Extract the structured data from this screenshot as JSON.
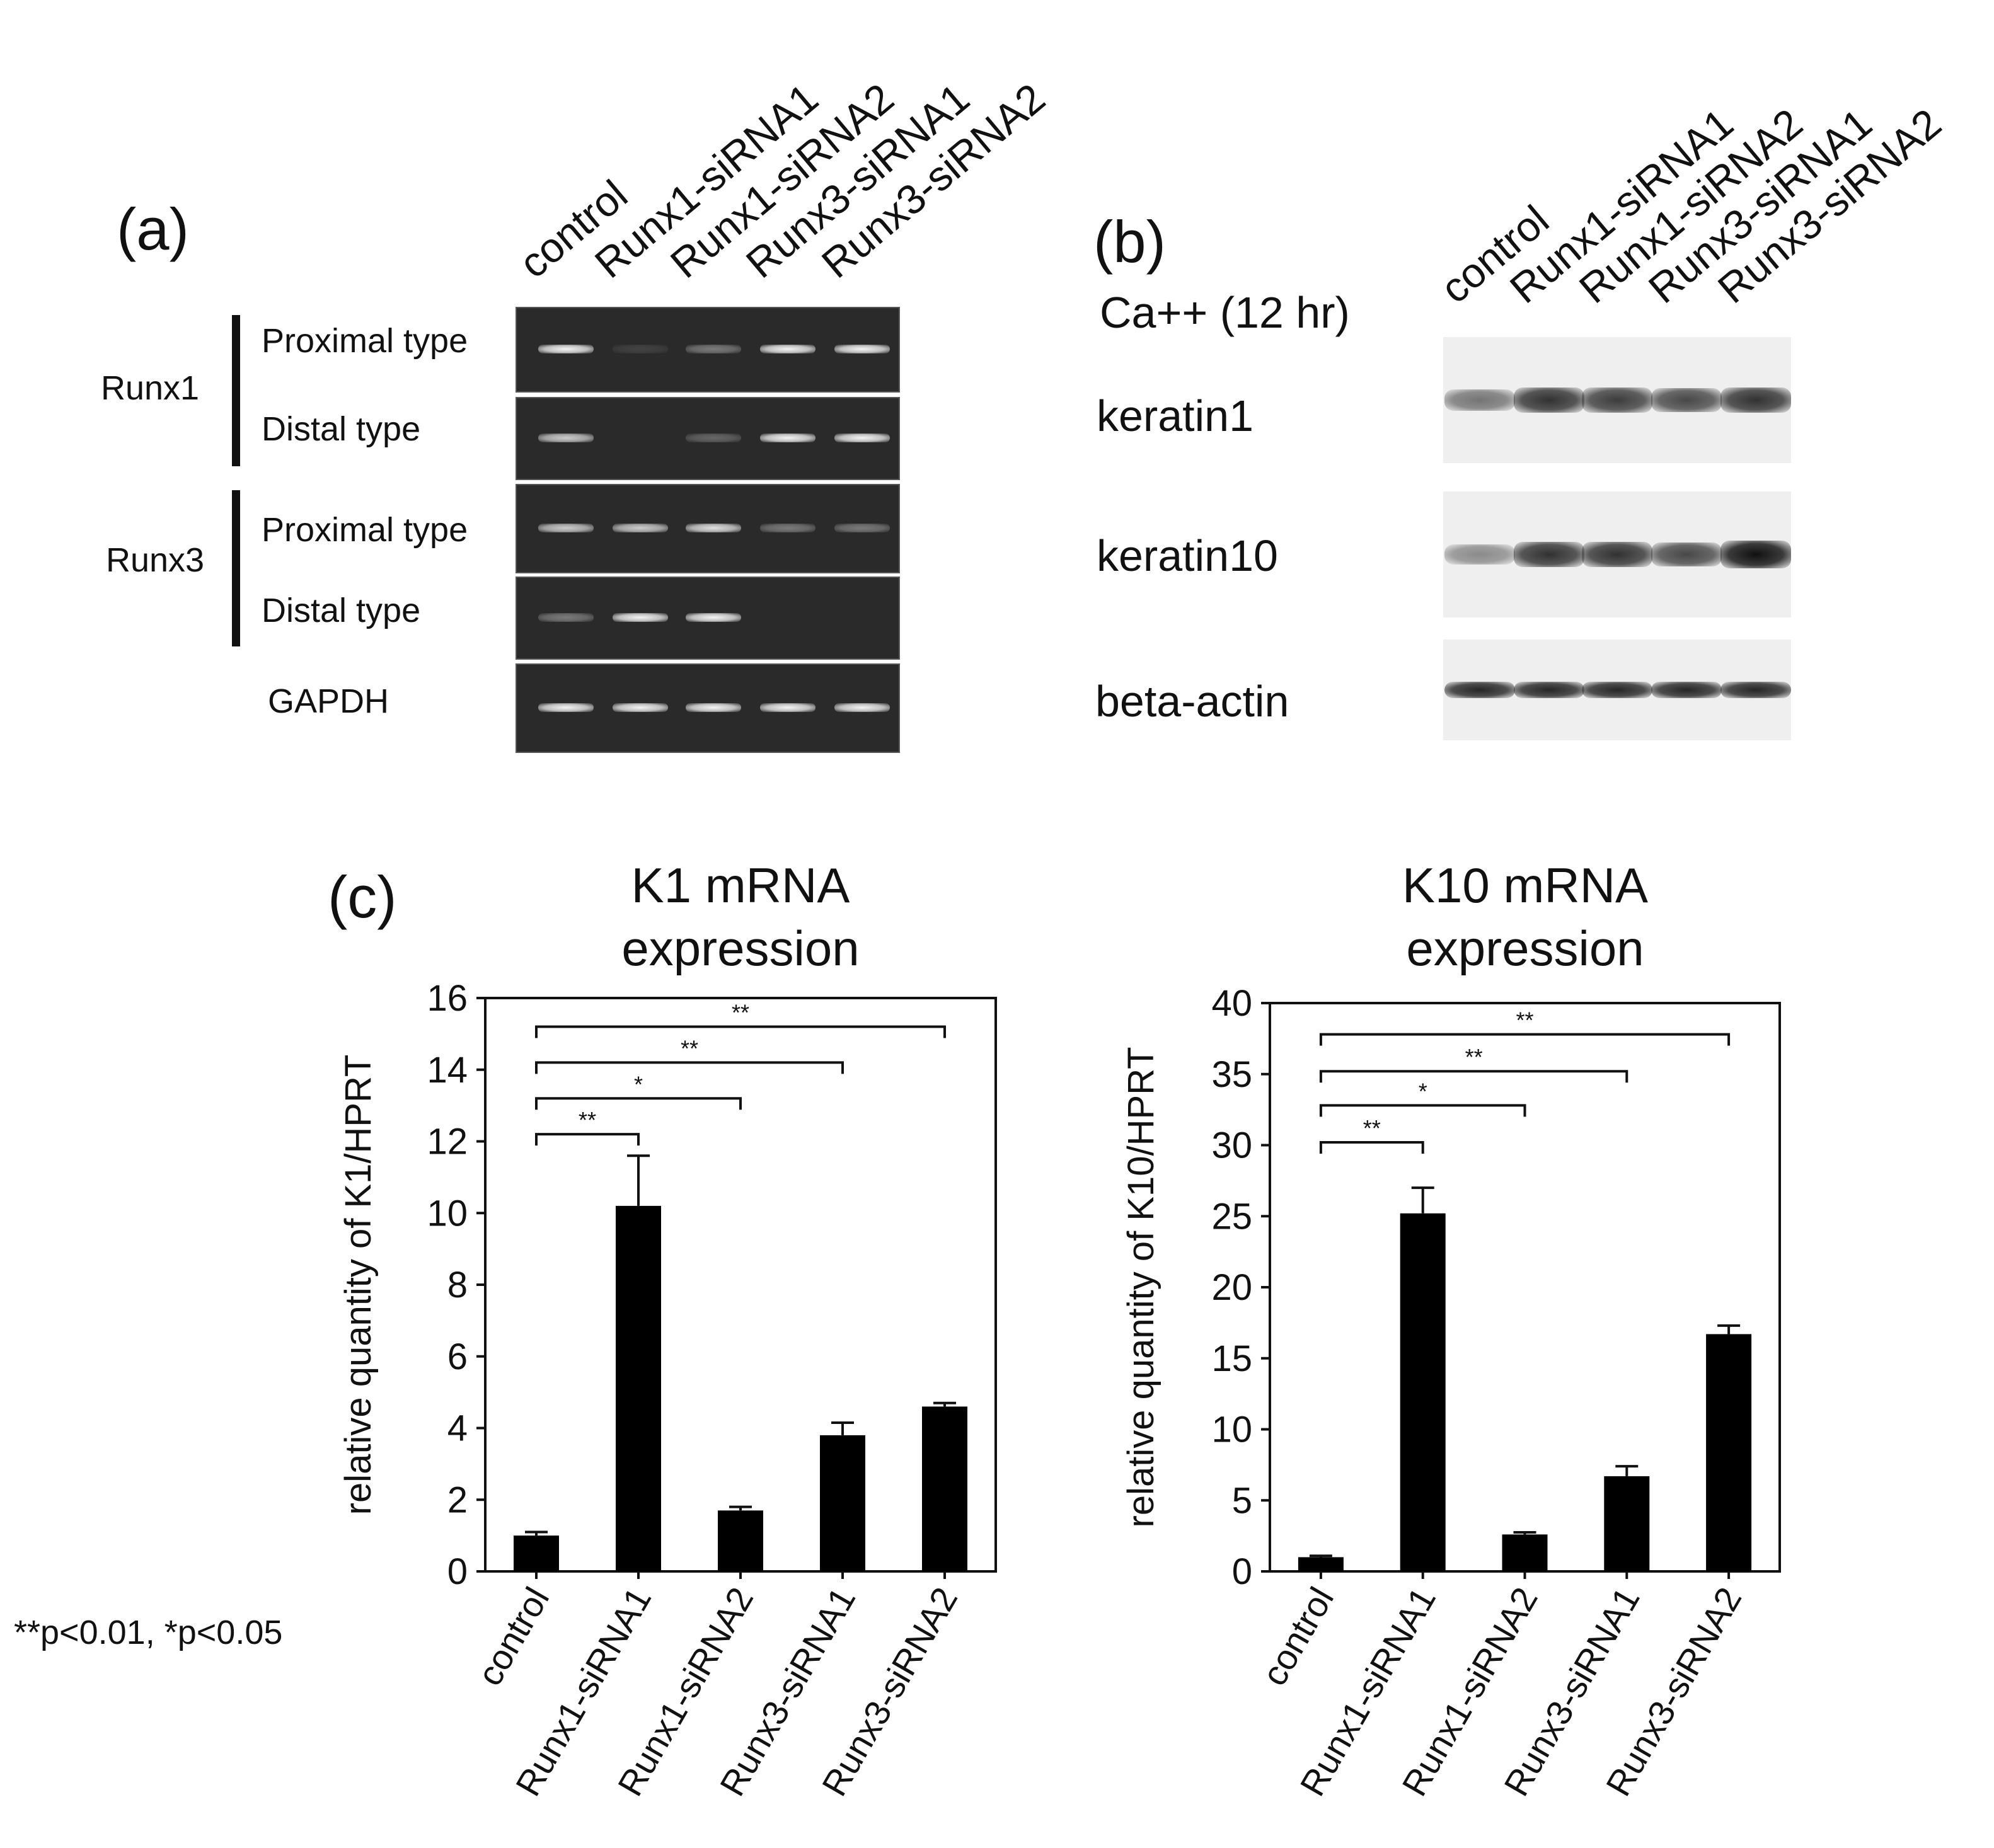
{
  "panel_a": {
    "letter": "(a)",
    "lanes": [
      "control",
      "Runx1-siRNA1",
      "Runx1-siRNA2",
      "Runx3-siRNA1",
      "Runx3-siRNA2"
    ],
    "groups": [
      {
        "name": "Runx1",
        "rows": [
          {
            "label": "Proximal type",
            "band_intensity": [
              1.0,
              0.1,
              0.4,
              1.0,
              1.0
            ]
          },
          {
            "label": "Distal type",
            "band_intensity": [
              0.8,
              0.0,
              0.3,
              1.0,
              1.0
            ]
          }
        ]
      },
      {
        "name": "Runx3",
        "rows": [
          {
            "label": "Proximal type",
            "band_intensity": [
              0.8,
              0.8,
              0.9,
              0.4,
              0.4
            ]
          },
          {
            "label": "Distal type",
            "band_intensity": [
              0.4,
              1.0,
              1.0,
              0.0,
              0.0
            ]
          }
        ]
      }
    ],
    "control_row": {
      "label": "GAPDH",
      "band_intensity": [
        1.0,
        1.0,
        1.0,
        1.0,
        1.0
      ]
    }
  },
  "panel_b": {
    "letter": "(b)",
    "condition": "Ca++ (12 hr)",
    "lanes": [
      "control",
      "Runx1-siRNA1",
      "Runx1-siRNA2",
      "Runx3-siRNA1",
      "Runx3-siRNA2"
    ],
    "rows": [
      {
        "label": "keratin1",
        "band_intensity": [
          0.55,
          0.85,
          0.8,
          0.75,
          0.85
        ]
      },
      {
        "label": "keratin10",
        "band_intensity": [
          0.45,
          0.85,
          0.85,
          0.75,
          1.0
        ]
      },
      {
        "label": "beta-actin",
        "band_intensity": [
          0.9,
          0.9,
          0.9,
          0.9,
          0.9
        ]
      }
    ]
  },
  "panel_c": {
    "letter": "(c)"
  },
  "footnote": "**p<0.01, *p<0.05",
  "chart_data": [
    {
      "type": "bar",
      "title_line1": "K1 mRNA",
      "title_line2": "expression",
      "ylabel": "relative quantity of K1/HPRT",
      "xlabel": "",
      "categories": [
        "control",
        "Runx1-siRNA1",
        "Runx1-siRNA2",
        "Runx3-siRNA1",
        "Runx3-siRNA2"
      ],
      "values": [
        1.0,
        10.2,
        1.7,
        3.8,
        4.6
      ],
      "errors": [
        0.1,
        1.4,
        0.1,
        0.35,
        0.1
      ],
      "ylim": [
        0,
        16
      ],
      "yticks": [
        "0",
        "2",
        "4",
        "6",
        "8",
        "10",
        "12",
        "14",
        "16"
      ],
      "significance": [
        {
          "to": 1,
          "label": "**",
          "y": 12.2
        },
        {
          "to": 2,
          "label": "*",
          "y": 13.2
        },
        {
          "to": 3,
          "label": "**",
          "y": 14.2
        },
        {
          "to": 4,
          "label": "**",
          "y": 15.2
        }
      ],
      "bar_color": "#000000"
    },
    {
      "type": "bar",
      "title_line1": "K10 mRNA",
      "title_line2": "expression",
      "ylabel": "relative quantity of K10/HPRT",
      "xlabel": "",
      "categories": [
        "control",
        "Runx1-siRNA1",
        "Runx1-siRNA2",
        "Runx3-siRNA1",
        "Runx3-siRNA2"
      ],
      "values": [
        1.0,
        25.2,
        2.6,
        6.7,
        16.7
      ],
      "errors": [
        0.1,
        1.8,
        0.15,
        0.7,
        0.6
      ],
      "ylim": [
        0,
        40
      ],
      "yticks": [
        "0",
        "5",
        "10",
        "15",
        "20",
        "25",
        "30",
        "35",
        "40"
      ],
      "significance": [
        {
          "to": 1,
          "label": "**",
          "y": 30.2
        },
        {
          "to": 2,
          "label": "*",
          "y": 32.8
        },
        {
          "to": 3,
          "label": "**",
          "y": 35.2
        },
        {
          "to": 4,
          "label": "**",
          "y": 37.8
        }
      ],
      "bar_color": "#000000"
    }
  ]
}
